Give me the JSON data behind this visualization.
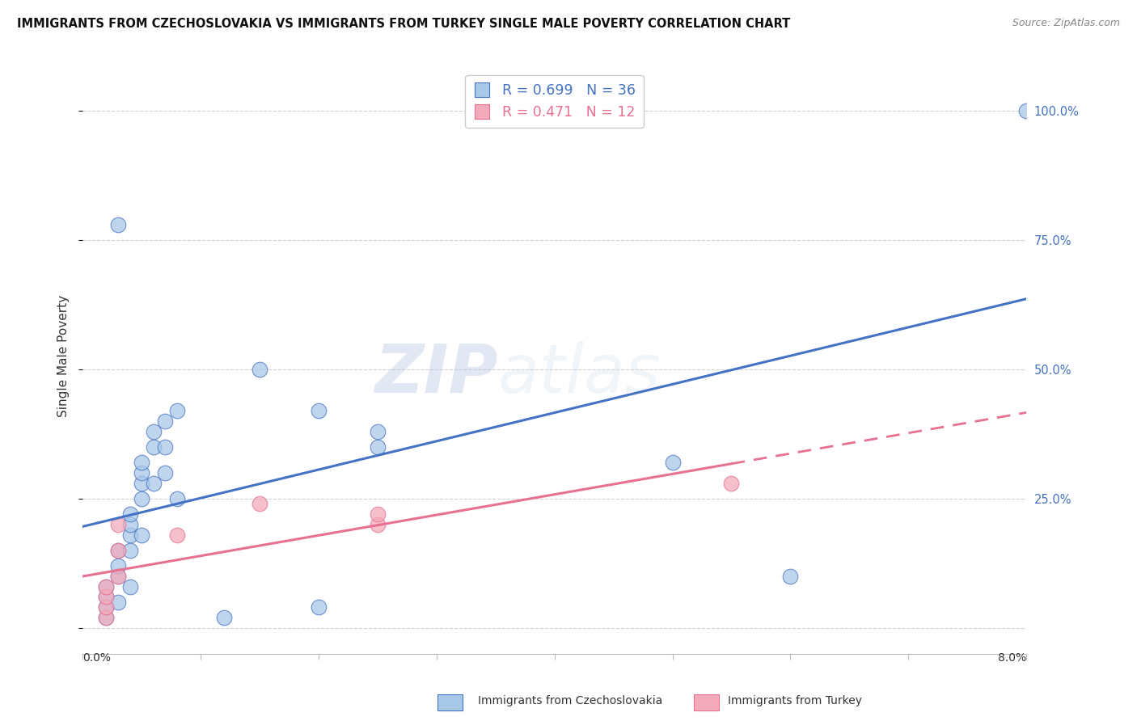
{
  "title": "IMMIGRANTS FROM CZECHOSLOVAKIA VS IMMIGRANTS FROM TURKEY SINGLE MALE POVERTY CORRELATION CHART",
  "source": "Source: ZipAtlas.com",
  "ylabel": "Single Male Poverty",
  "legend_label1": "Immigrants from Czechoslovakia",
  "legend_label2": "Immigrants from Turkey",
  "R1": 0.699,
  "N1": 36,
  "R2": 0.471,
  "N2": 12,
  "blue_color": "#A8C8E8",
  "pink_color": "#F4AABB",
  "blue_line_color": "#4472C4",
  "pink_line_color": "#E87090",
  "watermark_zip": "ZIP",
  "watermark_atlas": "atlas",
  "blue_dots": [
    [
      0.0002,
      0.02
    ],
    [
      0.0002,
      0.04
    ],
    [
      0.0002,
      0.06
    ],
    [
      0.0002,
      0.08
    ],
    [
      0.0003,
      0.05
    ],
    [
      0.0003,
      0.1
    ],
    [
      0.0003,
      0.12
    ],
    [
      0.0003,
      0.15
    ],
    [
      0.0004,
      0.08
    ],
    [
      0.0004,
      0.15
    ],
    [
      0.0004,
      0.18
    ],
    [
      0.0004,
      0.2
    ],
    [
      0.0004,
      0.22
    ],
    [
      0.0005,
      0.18
    ],
    [
      0.0005,
      0.25
    ],
    [
      0.0005,
      0.28
    ],
    [
      0.0005,
      0.3
    ],
    [
      0.0005,
      0.32
    ],
    [
      0.0006,
      0.28
    ],
    [
      0.0006,
      0.35
    ],
    [
      0.0006,
      0.38
    ],
    [
      0.0007,
      0.3
    ],
    [
      0.0007,
      0.35
    ],
    [
      0.0007,
      0.4
    ],
    [
      0.0008,
      0.25
    ],
    [
      0.0008,
      0.42
    ],
    [
      0.0003,
      0.78
    ],
    [
      0.0012,
      0.02
    ],
    [
      0.0015,
      0.5
    ],
    [
      0.002,
      0.42
    ],
    [
      0.0025,
      0.35
    ],
    [
      0.0025,
      0.38
    ],
    [
      0.005,
      0.32
    ],
    [
      0.002,
      0.04
    ],
    [
      0.006,
      0.1
    ],
    [
      0.008,
      1.0
    ]
  ],
  "pink_dots": [
    [
      0.0002,
      0.02
    ],
    [
      0.0002,
      0.04
    ],
    [
      0.0002,
      0.06
    ],
    [
      0.0002,
      0.08
    ],
    [
      0.0003,
      0.1
    ],
    [
      0.0003,
      0.15
    ],
    [
      0.0003,
      0.2
    ],
    [
      0.0008,
      0.18
    ],
    [
      0.0015,
      0.24
    ],
    [
      0.0025,
      0.2
    ],
    [
      0.0025,
      0.22
    ],
    [
      0.0055,
      0.28
    ]
  ],
  "xlim": [
    0.0,
    0.008
  ],
  "ylim": [
    -0.05,
    1.1
  ],
  "yticks": [
    0.0,
    0.25,
    0.5,
    0.75,
    1.0
  ],
  "yticklabels": [
    "",
    "25.0%",
    "50.0%",
    "75.0%",
    "100.0%"
  ]
}
